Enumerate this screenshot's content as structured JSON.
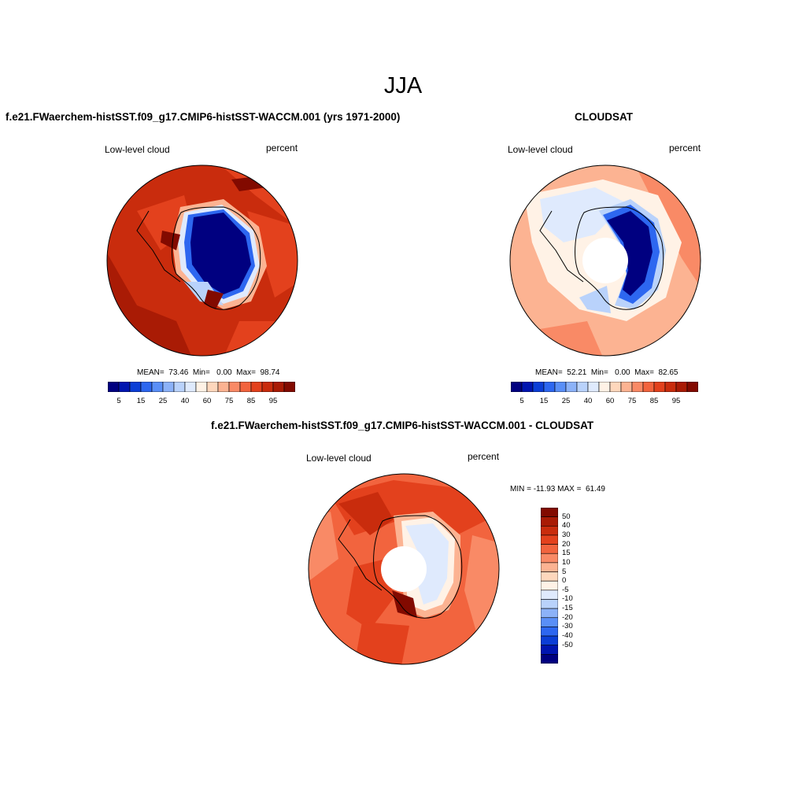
{
  "figure": {
    "title": "JJA"
  },
  "colorbar_levels": [
    "5",
    "15",
    "25",
    "40",
    "60",
    "75",
    "85",
    "95"
  ],
  "seq_colors": [
    "#000080",
    "#0015b0",
    "#0b3ed6",
    "#2d67f0",
    "#5a8ff7",
    "#8cb2f8",
    "#b9d2fb",
    "#dfeafd",
    "#fff2e6",
    "#fed7bc",
    "#fcb392",
    "#f98a66",
    "#f2643e",
    "#e3411d",
    "#c92c0d",
    "#a91b05",
    "#820a00"
  ],
  "diff_colors": [
    "#000080",
    "#0015b0",
    "#0b3ed6",
    "#2d67f0",
    "#5a8ff7",
    "#8cb2f8",
    "#b9d2fb",
    "#dfeafd",
    "#fff2e6",
    "#fed7bc",
    "#fcb392",
    "#f98a66",
    "#f2643e",
    "#e3411d",
    "#c92c0d",
    "#a91b05",
    "#820a00"
  ],
  "panels": {
    "model": {
      "title": "f.e21.FWaerchem-histSST.f09_g17.CMIP6-histSST-WACCM.001 (yrs 1971-2000)",
      "left_label": "Low-level cloud",
      "right_label": "percent",
      "stats": "MEAN=  73.46  Min=   0.00  Max=  98.74"
    },
    "obs": {
      "title": "CLOUDSAT",
      "left_label": "Low-level cloud",
      "right_label": "percent",
      "stats": "MEAN=  52.21  Min=   0.00  Max=  82.65"
    },
    "diff": {
      "title": "f.e21.FWaerchem-histSST.f09_g17.CMIP6-histSST-WACCM.001 - CLOUDSAT",
      "left_label": "Low-level cloud",
      "right_label": "percent",
      "stats": "MIN = -11.93 MAX =  61.49",
      "colorbar_levels": [
        "50",
        "40",
        "30",
        "20",
        "15",
        "10",
        "5",
        "0",
        "-5",
        "-10",
        "-15",
        "-20",
        "-30",
        "-40",
        "-50"
      ]
    }
  }
}
